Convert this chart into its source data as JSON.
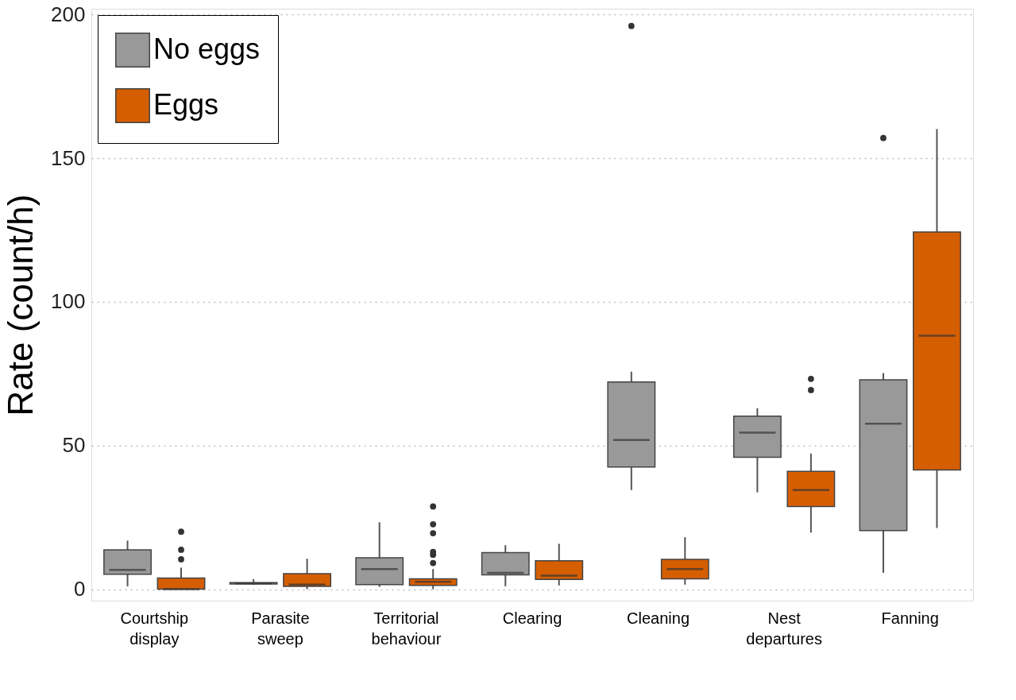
{
  "chart_data": {
    "type": "box",
    "ylabel": "Rate (count/h)",
    "categories": [
      "Courtship display",
      "Parasite sweep",
      "Territorial behaviour",
      "Clearing",
      "Cleaning",
      "Nest departures",
      "Fanning"
    ],
    "ylim": [
      -4,
      202
    ],
    "yticks": [
      0,
      50,
      100,
      150,
      200
    ],
    "grid": "y",
    "legend": "top left",
    "series": [
      {
        "name": "No eggs",
        "color": "#999999",
        "boxes": [
          {
            "low": 1.0,
            "q1": 5.2,
            "median": 6.7,
            "q3": 13.7,
            "high": 16.9
          },
          {
            "low": 1.5,
            "q1": 1.8,
            "median": 2.0,
            "q3": 2.3,
            "high": 3.5
          },
          {
            "low": 0.8,
            "q1": 1.6,
            "median": 7.0,
            "q3": 10.9,
            "high": 23.3
          },
          {
            "low": 1.0,
            "q1": 5.0,
            "median": 5.7,
            "q3": 12.7,
            "high": 15.3
          },
          {
            "low": 34.5,
            "q1": 42.5,
            "median": 51.9,
            "q3": 72.1,
            "high": 75.7,
            "outliers": [
              196
            ]
          },
          {
            "low": 33.7,
            "q1": 45.9,
            "median": 54.5,
            "q3": 60.2,
            "high": 63
          },
          {
            "low": 5.7,
            "q1": 20.4,
            "median": 57.6,
            "q3": 72.9,
            "high": 75.2,
            "outliers": [
              157
            ]
          }
        ]
      },
      {
        "name": "Eggs",
        "color": "#d55e00",
        "boxes": [
          {
            "low": 0,
            "q1": 0,
            "median": 0,
            "q3": 3.9,
            "high": 7.5,
            "outliers": [
              10.4,
              13.7,
              20
            ]
          },
          {
            "low": 0,
            "q1": 1.0,
            "median": 1.6,
            "q3": 5.4,
            "high": 10.6
          },
          {
            "low": 0,
            "q1": 1.3,
            "median": 2.6,
            "q3": 3.6,
            "high": 7.0,
            "outliers": [
              9.1,
              12,
              13,
              19.5,
              22.6,
              28.8
            ]
          },
          {
            "low": 1.3,
            "q1": 3.4,
            "median": 4.7,
            "q3": 9.9,
            "high": 15.8
          },
          {
            "low": 1.6,
            "q1": 3.6,
            "median": 7.0,
            "q3": 10.4,
            "high": 18.1
          },
          {
            "low": 19.7,
            "q1": 28.8,
            "median": 34.5,
            "q3": 41,
            "high": 47.2,
            "outliers": [
              69.3,
              73.2
            ]
          },
          {
            "low": 21.3,
            "q1": 41.5,
            "median": 88.2,
            "q3": 124.3,
            "high": 160.1
          }
        ]
      }
    ]
  }
}
